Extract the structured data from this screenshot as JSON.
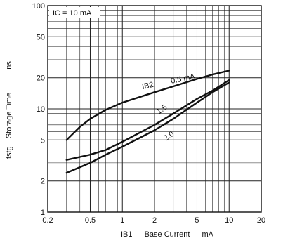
{
  "chart_data": {
    "type": "line",
    "x_scale": "log",
    "y_scale": "log",
    "xlim": [
      0.2,
      20
    ],
    "ylim": [
      1,
      100
    ],
    "grid": true,
    "xlabel": {
      "symbol": "IB1",
      "text": "Base Current",
      "unit": "mA"
    },
    "ylabel": {
      "symbol": "tstg",
      "text": "Storage Time",
      "unit": "ns"
    },
    "x_ticks": [
      "0.2",
      "0.5",
      "1",
      "2",
      "5",
      "10",
      "20"
    ],
    "y_ticks": [
      "1",
      "2",
      "5",
      "10",
      "20",
      "50",
      "100"
    ],
    "condition": "IC = 10 mA",
    "series": [
      {
        "name": "IB2 = 0.5 mA",
        "x": [
          0.3,
          0.4,
          0.5,
          0.7,
          1,
          2,
          3,
          5,
          7,
          10
        ],
        "y": [
          5,
          6.7,
          8,
          9.8,
          11.5,
          14.5,
          16.5,
          19.5,
          21.5,
          23.5
        ]
      },
      {
        "name": "1.5",
        "x": [
          0.3,
          0.5,
          0.7,
          1,
          2,
          3,
          5,
          7,
          10
        ],
        "y": [
          3.2,
          3.6,
          4,
          4.8,
          7,
          9,
          12.5,
          15,
          19
        ]
      },
      {
        "name": "2.0",
        "x": [
          0.3,
          0.5,
          0.7,
          1,
          2,
          3,
          5,
          7,
          10
        ],
        "y": [
          2.4,
          3,
          3.6,
          4.3,
          6.2,
          8,
          11.5,
          14.5,
          18
        ]
      }
    ],
    "labels": {
      "ib2_prefix": "IB2",
      "first_curve_value": "0.5 mA",
      "second_curve_value": "1.5",
      "third_curve_value": "2.0"
    },
    "colors": {
      "line": "#111111",
      "grid": "#222222",
      "background": "#ffffff"
    }
  }
}
